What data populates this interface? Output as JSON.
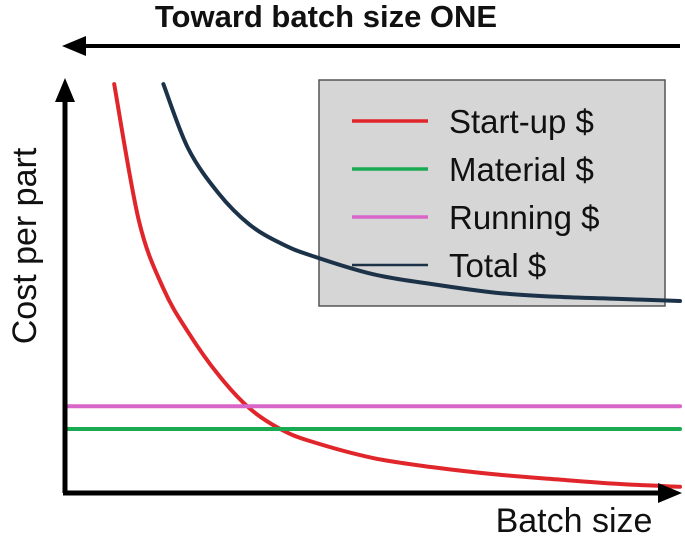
{
  "chart_data": {
    "type": "line",
    "banner": "Toward batch size ONE",
    "xlabel": "Batch size",
    "ylabel": "Cost per part",
    "xlim": [
      0,
      10
    ],
    "ylim": [
      0,
      10
    ],
    "grid": false,
    "legend_position": "top-right",
    "series": [
      {
        "name": "Start-up $",
        "color": "#e0262b",
        "x": [
          0.8,
          1.2,
          1.6,
          2.0,
          2.5,
          3.0,
          3.5,
          4.0,
          5.0,
          6.0,
          7.0,
          8.0,
          9.0,
          10.0
        ],
        "y": [
          9.9,
          6.6,
          4.95,
          3.9,
          2.85,
          2.05,
          1.55,
          1.25,
          0.85,
          0.62,
          0.45,
          0.33,
          0.22,
          0.15
        ]
      },
      {
        "name": "Material $",
        "color": "#1aaa52",
        "x": [
          0,
          10
        ],
        "y": [
          1.55,
          1.55
        ]
      },
      {
        "name": "Running $",
        "color": "#d965c8",
        "x": [
          0,
          10
        ],
        "y": [
          2.1,
          2.1
        ]
      },
      {
        "name": "Total $",
        "color": "#1c3248",
        "x": [
          1.6,
          2.0,
          2.5,
          3.0,
          3.5,
          4.0,
          5.0,
          6.0,
          7.0,
          8.0,
          9.0,
          10.0
        ],
        "y": [
          9.9,
          8.35,
          7.25,
          6.5,
          6.05,
          5.75,
          5.3,
          5.05,
          4.85,
          4.75,
          4.7,
          4.65
        ]
      }
    ]
  }
}
